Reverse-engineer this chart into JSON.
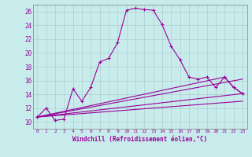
{
  "xlabel": "Windchill (Refroidissement éolien,°C)",
  "background_color": "#c8ecec",
  "line_color": "#990099",
  "xlim": [
    -0.5,
    23.5
  ],
  "ylim": [
    9.0,
    27.0
  ],
  "xticks": [
    0,
    1,
    2,
    3,
    4,
    5,
    6,
    7,
    8,
    9,
    10,
    11,
    12,
    13,
    14,
    15,
    16,
    17,
    18,
    19,
    20,
    21,
    22,
    23
  ],
  "yticks": [
    10,
    12,
    14,
    16,
    18,
    20,
    22,
    24,
    26
  ],
  "curve1_x": [
    0,
    1,
    2,
    3,
    4,
    5,
    6,
    7,
    8,
    9,
    10,
    11,
    12,
    13,
    14,
    15,
    16,
    17,
    18,
    19,
    20,
    21,
    22,
    23
  ],
  "curve1_y": [
    10.7,
    12.0,
    10.2,
    10.4,
    14.8,
    13.0,
    15.0,
    18.7,
    19.2,
    21.5,
    26.2,
    26.5,
    26.3,
    26.2,
    24.1,
    21.0,
    19.0,
    16.5,
    16.2,
    16.5,
    15.0,
    16.5,
    15.0,
    14.1
  ],
  "curve2_x": [
    0,
    21,
    22,
    23
  ],
  "curve2_y": [
    10.7,
    16.5,
    15.0,
    14.1
  ],
  "curve3_x": [
    0,
    23
  ],
  "curve3_y": [
    10.7,
    16.2
  ],
  "curve4_x": [
    0,
    23
  ],
  "curve4_y": [
    10.7,
    14.1
  ],
  "curve5_x": [
    0,
    23
  ],
  "curve5_y": [
    10.7,
    13.0
  ]
}
